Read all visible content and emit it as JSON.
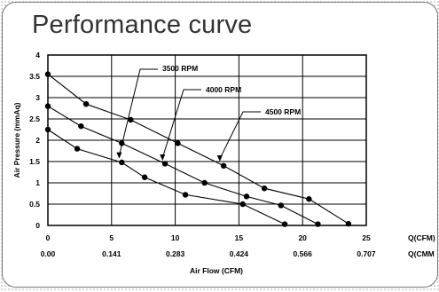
{
  "title": "Performance curve",
  "chart_data": {
    "type": "line",
    "xlabel": "Air Flow (CFM)",
    "ylabel": "Air Pressure (mmAq)",
    "xlim": [
      0,
      25
    ],
    "ylim": [
      0,
      4
    ],
    "x_ticks": [
      0,
      5,
      10,
      15,
      20,
      25
    ],
    "y_ticks": [
      0,
      0.5,
      1,
      1.5,
      2,
      2.5,
      3,
      3.5,
      4
    ],
    "x_unit_label": "Q(CFM)",
    "x2_unit_label": "Q(CMM",
    "x2_ticks": [
      "0.00",
      "0.141",
      "0.283",
      "0.424",
      "0.566",
      "0.707"
    ],
    "grid": true,
    "series": [
      {
        "name": "3500 RPM",
        "x": [
          0,
          2.3,
          5.8,
          7.6,
          10.8,
          15.3,
          18.6
        ],
        "y": [
          2.25,
          1.8,
          1.48,
          1.13,
          0.72,
          0.5,
          0.03
        ]
      },
      {
        "name": "4000 RPM",
        "x": [
          0,
          2.6,
          5.8,
          9.2,
          12.3,
          15.6,
          18.3,
          21.2
        ],
        "y": [
          2.8,
          2.33,
          1.93,
          1.45,
          1.0,
          0.68,
          0.47,
          0.03
        ]
      },
      {
        "name": "4500 RPM",
        "x": [
          0,
          3.0,
          6.5,
          10.2,
          13.8,
          17.0,
          20.5,
          23.6
        ],
        "y": [
          3.55,
          2.85,
          2.48,
          1.93,
          1.4,
          0.87,
          0.62,
          0.04
        ]
      }
    ],
    "annotations": [
      {
        "text": "3500 RPM",
        "target": {
          "x": 5.6,
          "y": 1.55
        }
      },
      {
        "text": "4000 RPM",
        "target": {
          "x": 9.0,
          "y": 1.5
        }
      },
      {
        "text": "4500 RPM",
        "target": {
          "x": 13.5,
          "y": 1.48
        }
      }
    ]
  }
}
